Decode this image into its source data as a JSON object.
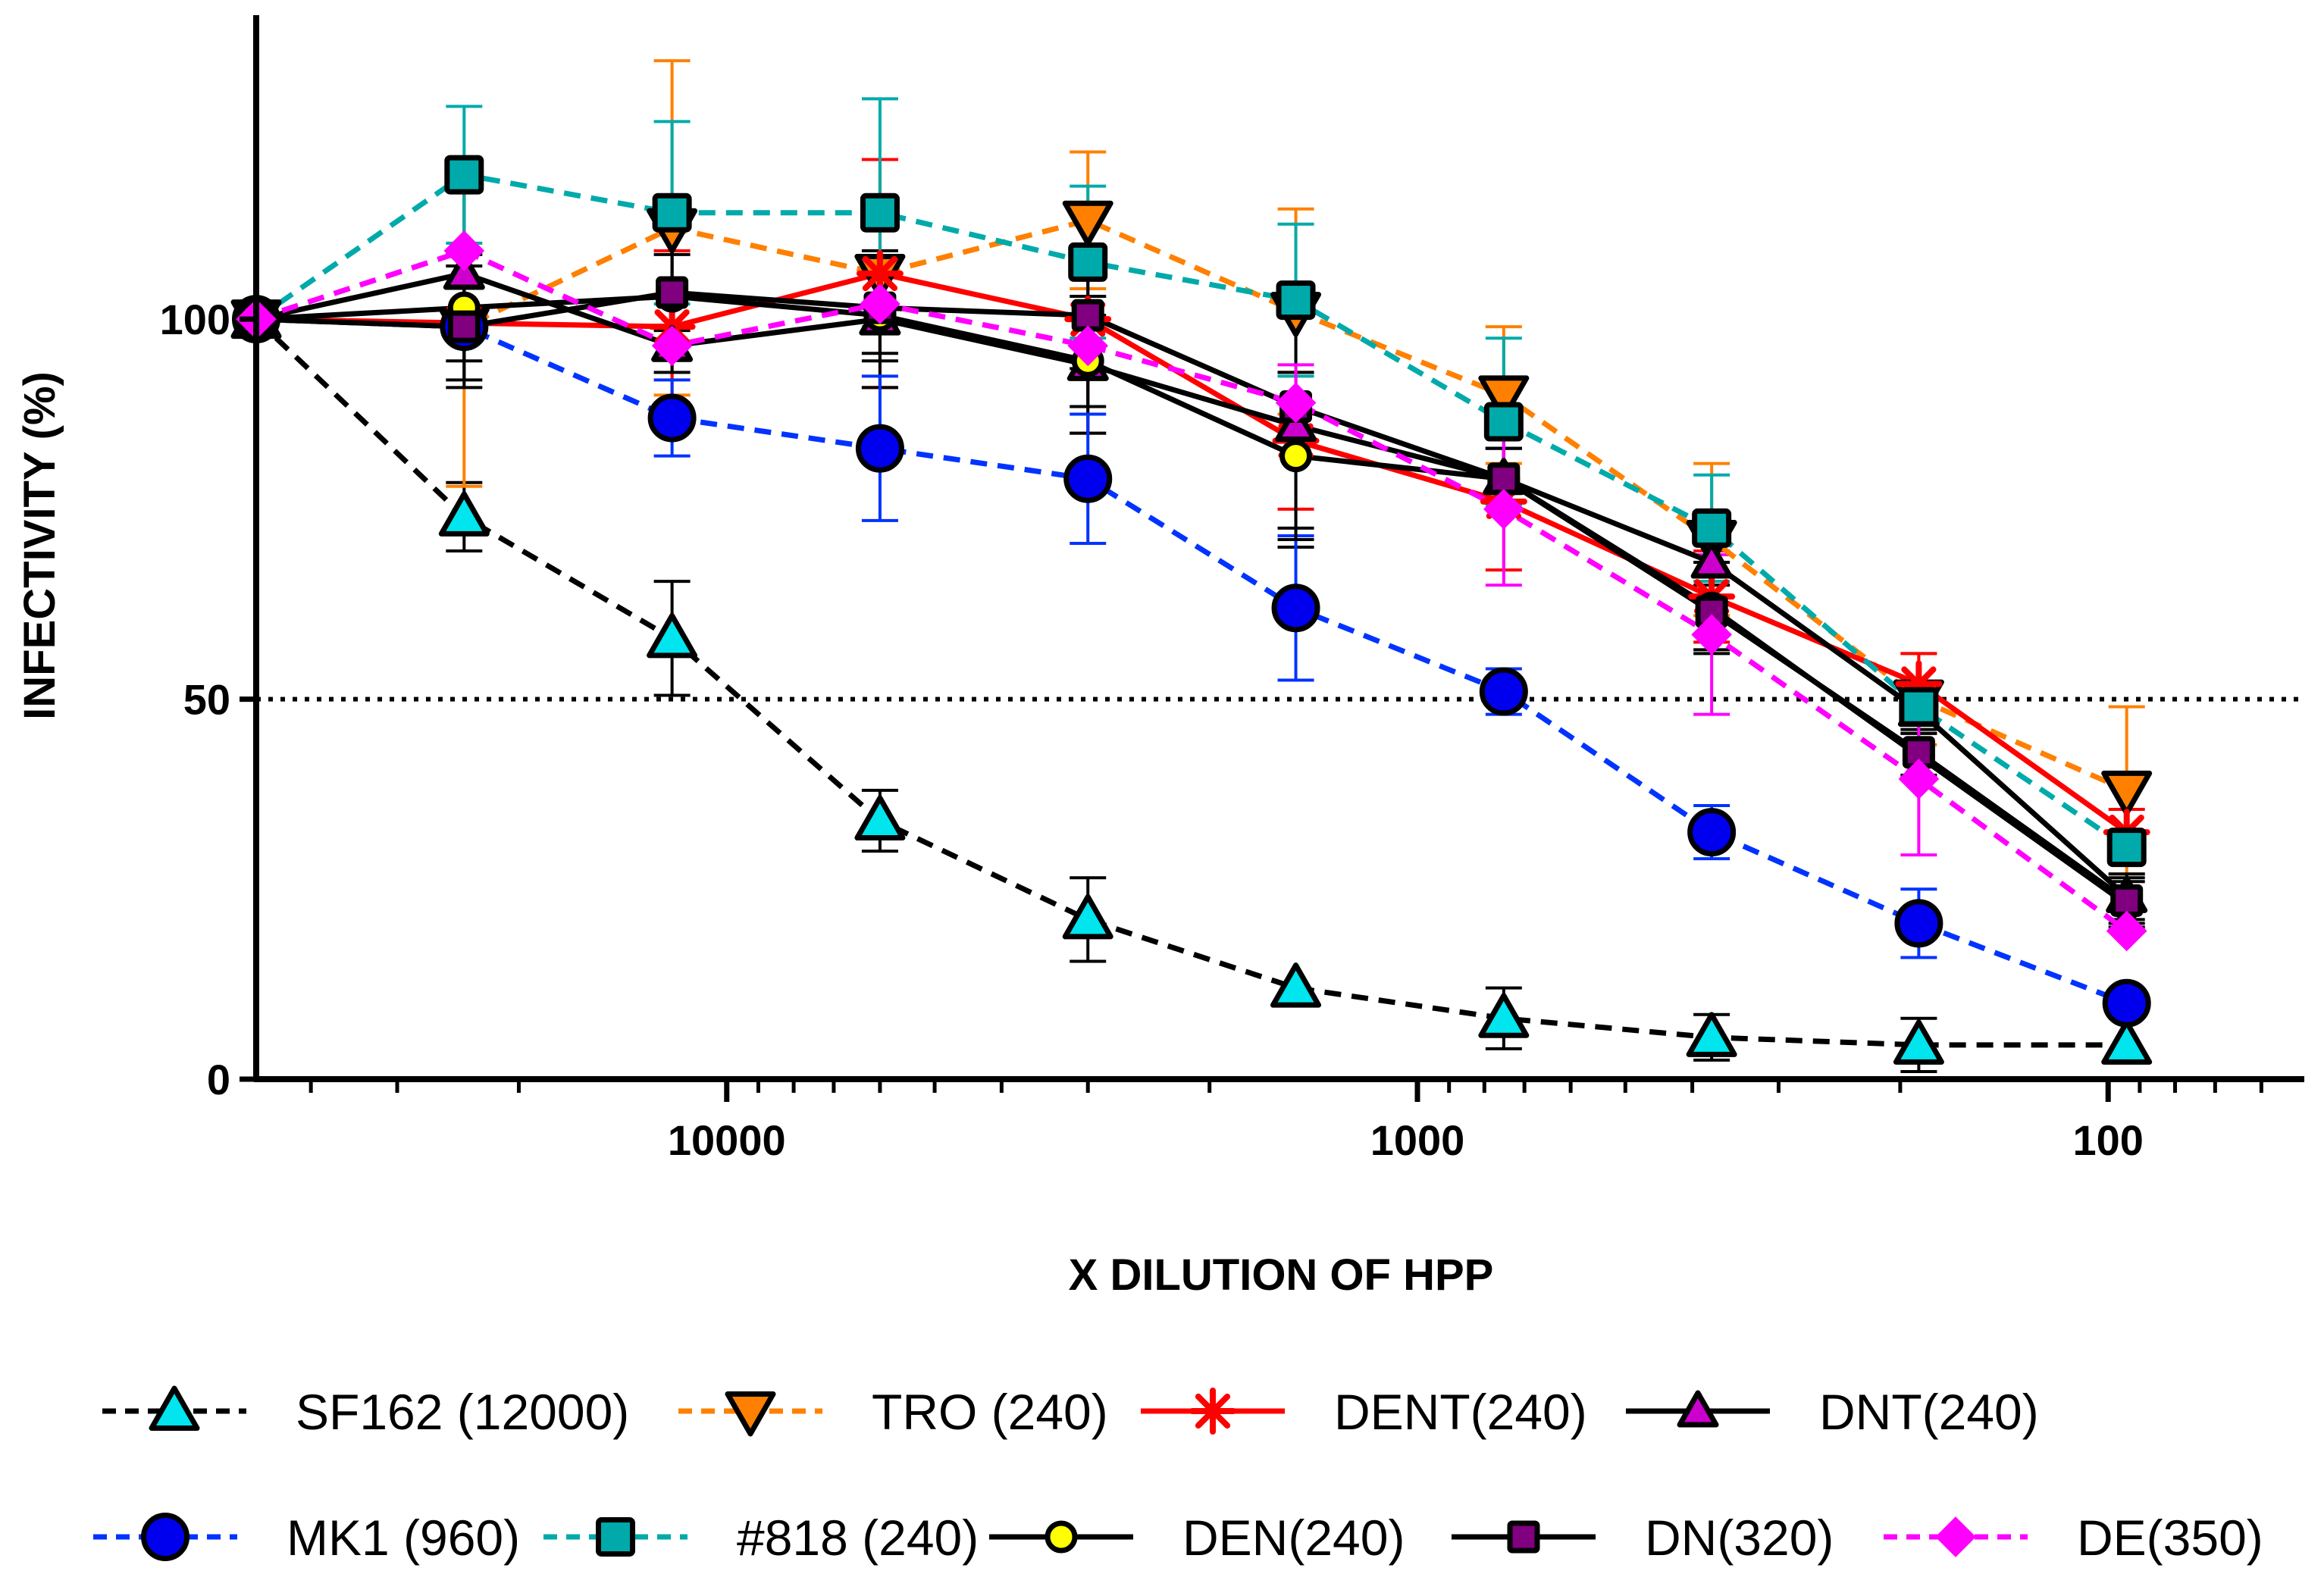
{
  "chart_data": {
    "type": "line",
    "xlabel": "X DILUTION  OF HPP",
    "ylabel": "INFECTIVITY (%)",
    "x_scale": "log",
    "x_reversed": true,
    "xlim": [
      48000,
      52
    ],
    "ylim": [
      0,
      140
    ],
    "x_ticks": [
      10000,
      1000,
      100
    ],
    "x_tick_labels": [
      "10000",
      "1000",
      "100"
    ],
    "y_ticks": [
      0,
      50,
      100
    ],
    "y_tick_labels": [
      "0",
      "50",
      "100"
    ],
    "reference_line": {
      "y": 50,
      "style": "dotted",
      "color": "#000000"
    },
    "x": [
      48000,
      24000,
      12000,
      6000,
      3000,
      1500,
      750,
      375,
      188,
      94
    ],
    "legend_position": "bottom",
    "series": [
      {
        "name": "SF162 (12000)",
        "color": "#000000",
        "marker": "triangle-up",
        "marker_fill": "#00e5ee",
        "dash": "dashed",
        "values": [
          100,
          74,
          58,
          34,
          21,
          12,
          8,
          5.5,
          4.5,
          4.5
        ],
        "errors": [
          0,
          4.5,
          7.5,
          4,
          5.5,
          0,
          4,
          3,
          3.5,
          0
        ]
      },
      {
        "name": "TRO (240)",
        "color": "#ff8000",
        "marker": "triangle-down",
        "marker_fill": "#ff8000",
        "dash": "dashed",
        "values": [
          100,
          99,
          112,
          106,
          113,
          101,
          90,
          71,
          50,
          38
        ],
        "errors": [
          0,
          21,
          22,
          15,
          9,
          13.5,
          9,
          10,
          6,
          11
        ]
      },
      {
        "name": "DENT(240)",
        "color": "#ff0000",
        "marker": "asterisk",
        "marker_fill": "#ff0000",
        "dash": "solid",
        "values": [
          100,
          99.5,
          99,
          106,
          100,
          84,
          76,
          63.5,
          52,
          32.5
        ],
        "errors": [
          0,
          0,
          10,
          15,
          15,
          9,
          9,
          6,
          4,
          3
        ]
      },
      {
        "name": "DNT(240)",
        "color": "#000000",
        "marker": "triangle-up-small",
        "marker_fill": "#cc00cc",
        "dash": "solid",
        "values": [
          100,
          106,
          96.5,
          100,
          94,
          86,
          79,
          68,
          48.5,
          24
        ],
        "errors": [
          0,
          14,
          0,
          9,
          9,
          16,
          4,
          3,
          3,
          3
        ]
      },
      {
        "name": "MK1 (960)",
        "color": "#0033ff",
        "marker": "circle",
        "marker_fill": "#0000ee",
        "dash": "dashed",
        "values": [
          100,
          99,
          87,
          83,
          79,
          62,
          51,
          32.5,
          20.5,
          10
        ],
        "errors": [
          0,
          0,
          5,
          9.5,
          8.5,
          9.5,
          3,
          3.5,
          4.5,
          0
        ]
      },
      {
        "name": "#818 (240)",
        "color": "#00aaaa",
        "marker": "square",
        "marker_fill": "#00aaaa",
        "dash": "dashed",
        "values": [
          100,
          119,
          114,
          114,
          107.5,
          102.5,
          86.5,
          72.5,
          49,
          30.5
        ],
        "errors": [
          0,
          9,
          12,
          15,
          10,
          10,
          11,
          7,
          0,
          0
        ]
      },
      {
        "name": "DEN(240)",
        "color": "#000000",
        "marker": "circle-small",
        "marker_fill": "#ffff00",
        "dash": "solid",
        "values": [
          100,
          101.5,
          103,
          100.5,
          94.5,
          82,
          79,
          62,
          42.5,
          23
        ],
        "errors": [
          0,
          7,
          10,
          6,
          6,
          11,
          4,
          6,
          3,
          3
        ]
      },
      {
        "name": "DN(320)",
        "color": "#000000",
        "marker": "square-small",
        "marker_fill": "#800080",
        "dash": "solid",
        "values": [
          100,
          99,
          103.5,
          101.5,
          100.5,
          88.5,
          79,
          61.5,
          43,
          23.5
        ],
        "errors": [
          0,
          8,
          5,
          6,
          7,
          16,
          4,
          5,
          3,
          3
        ]
      },
      {
        "name": "DE(350)",
        "color": "#ff00ff",
        "marker": "diamond",
        "marker_fill": "#ff00ff",
        "dash": "dashed",
        "values": [
          100,
          109,
          96.5,
          102,
          96.5,
          89,
          75,
          58.5,
          39.5,
          19.5
        ],
        "errors": [
          0,
          0,
          0,
          0,
          0,
          5,
          10,
          10.5,
          10,
          0
        ]
      }
    ]
  }
}
